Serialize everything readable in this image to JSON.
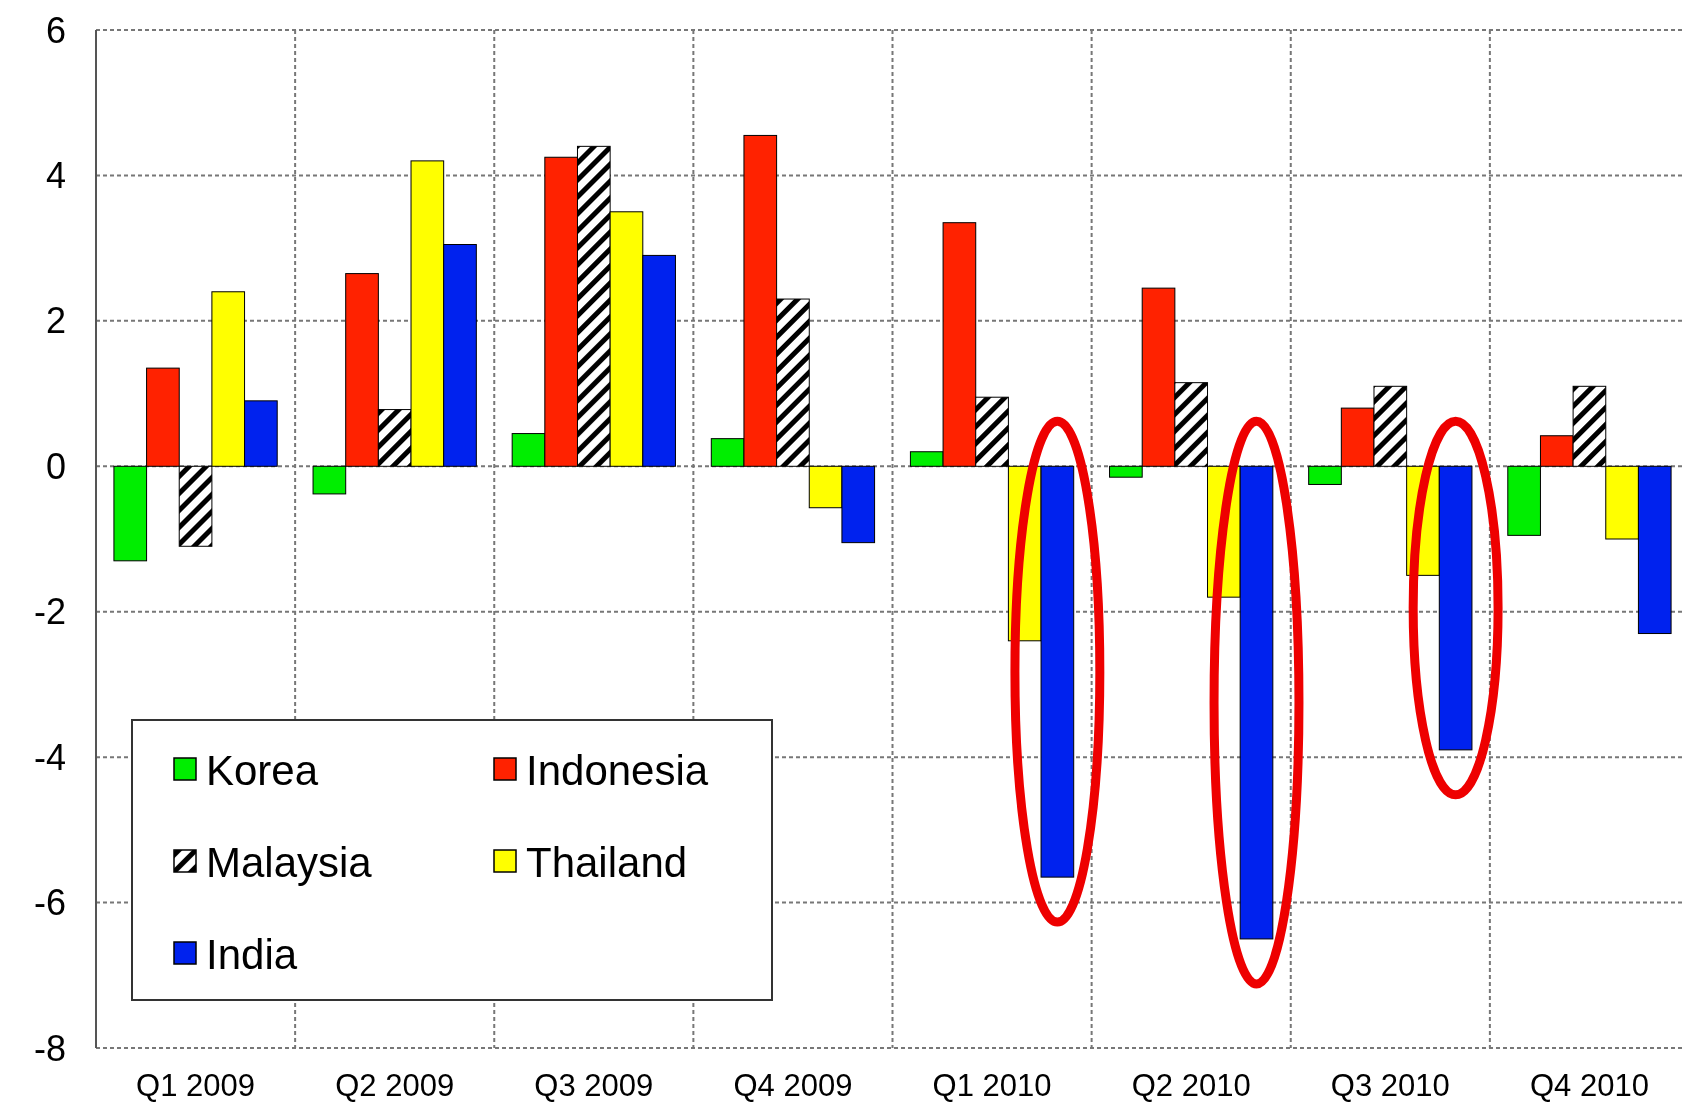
{
  "chart_data": {
    "type": "bar",
    "categories": [
      "Q1 2009",
      "Q2 2009",
      "Q3 2009",
      "Q4 2009",
      "Q1 2010",
      "Q2 2010",
      "Q3 2010",
      "Q4 2010"
    ],
    "series": [
      {
        "name": "Korea",
        "color": "#00ee00",
        "values": [
          -1.3,
          -0.38,
          0.45,
          0.38,
          0.2,
          -0.15,
          -0.25,
          -0.95
        ]
      },
      {
        "name": "Indonesia",
        "color": "#ff2200",
        "values": [
          1.35,
          2.65,
          4.25,
          4.55,
          3.35,
          2.45,
          0.8,
          0.42
        ]
      },
      {
        "name": "Malaysia",
        "color": "#000000",
        "values": [
          -1.1,
          0.78,
          4.4,
          2.3,
          0.95,
          1.15,
          1.1,
          1.1
        ]
      },
      {
        "name": "Thailand",
        "color": "#ffff00",
        "values": [
          2.4,
          4.2,
          3.5,
          -0.57,
          -2.4,
          -1.8,
          -1.5,
          -1.0
        ]
      },
      {
        "name": "India",
        "color": "#0022ee",
        "values": [
          0.9,
          3.05,
          2.9,
          -1.05,
          -5.65,
          -6.5,
          -3.9,
          -2.3
        ]
      }
    ],
    "ylim": [
      -8,
      6
    ],
    "yticks": [
      -8,
      -6,
      -4,
      -2,
      0,
      2,
      4,
      6
    ],
    "grid": true,
    "legend": "bottom left"
  }
}
